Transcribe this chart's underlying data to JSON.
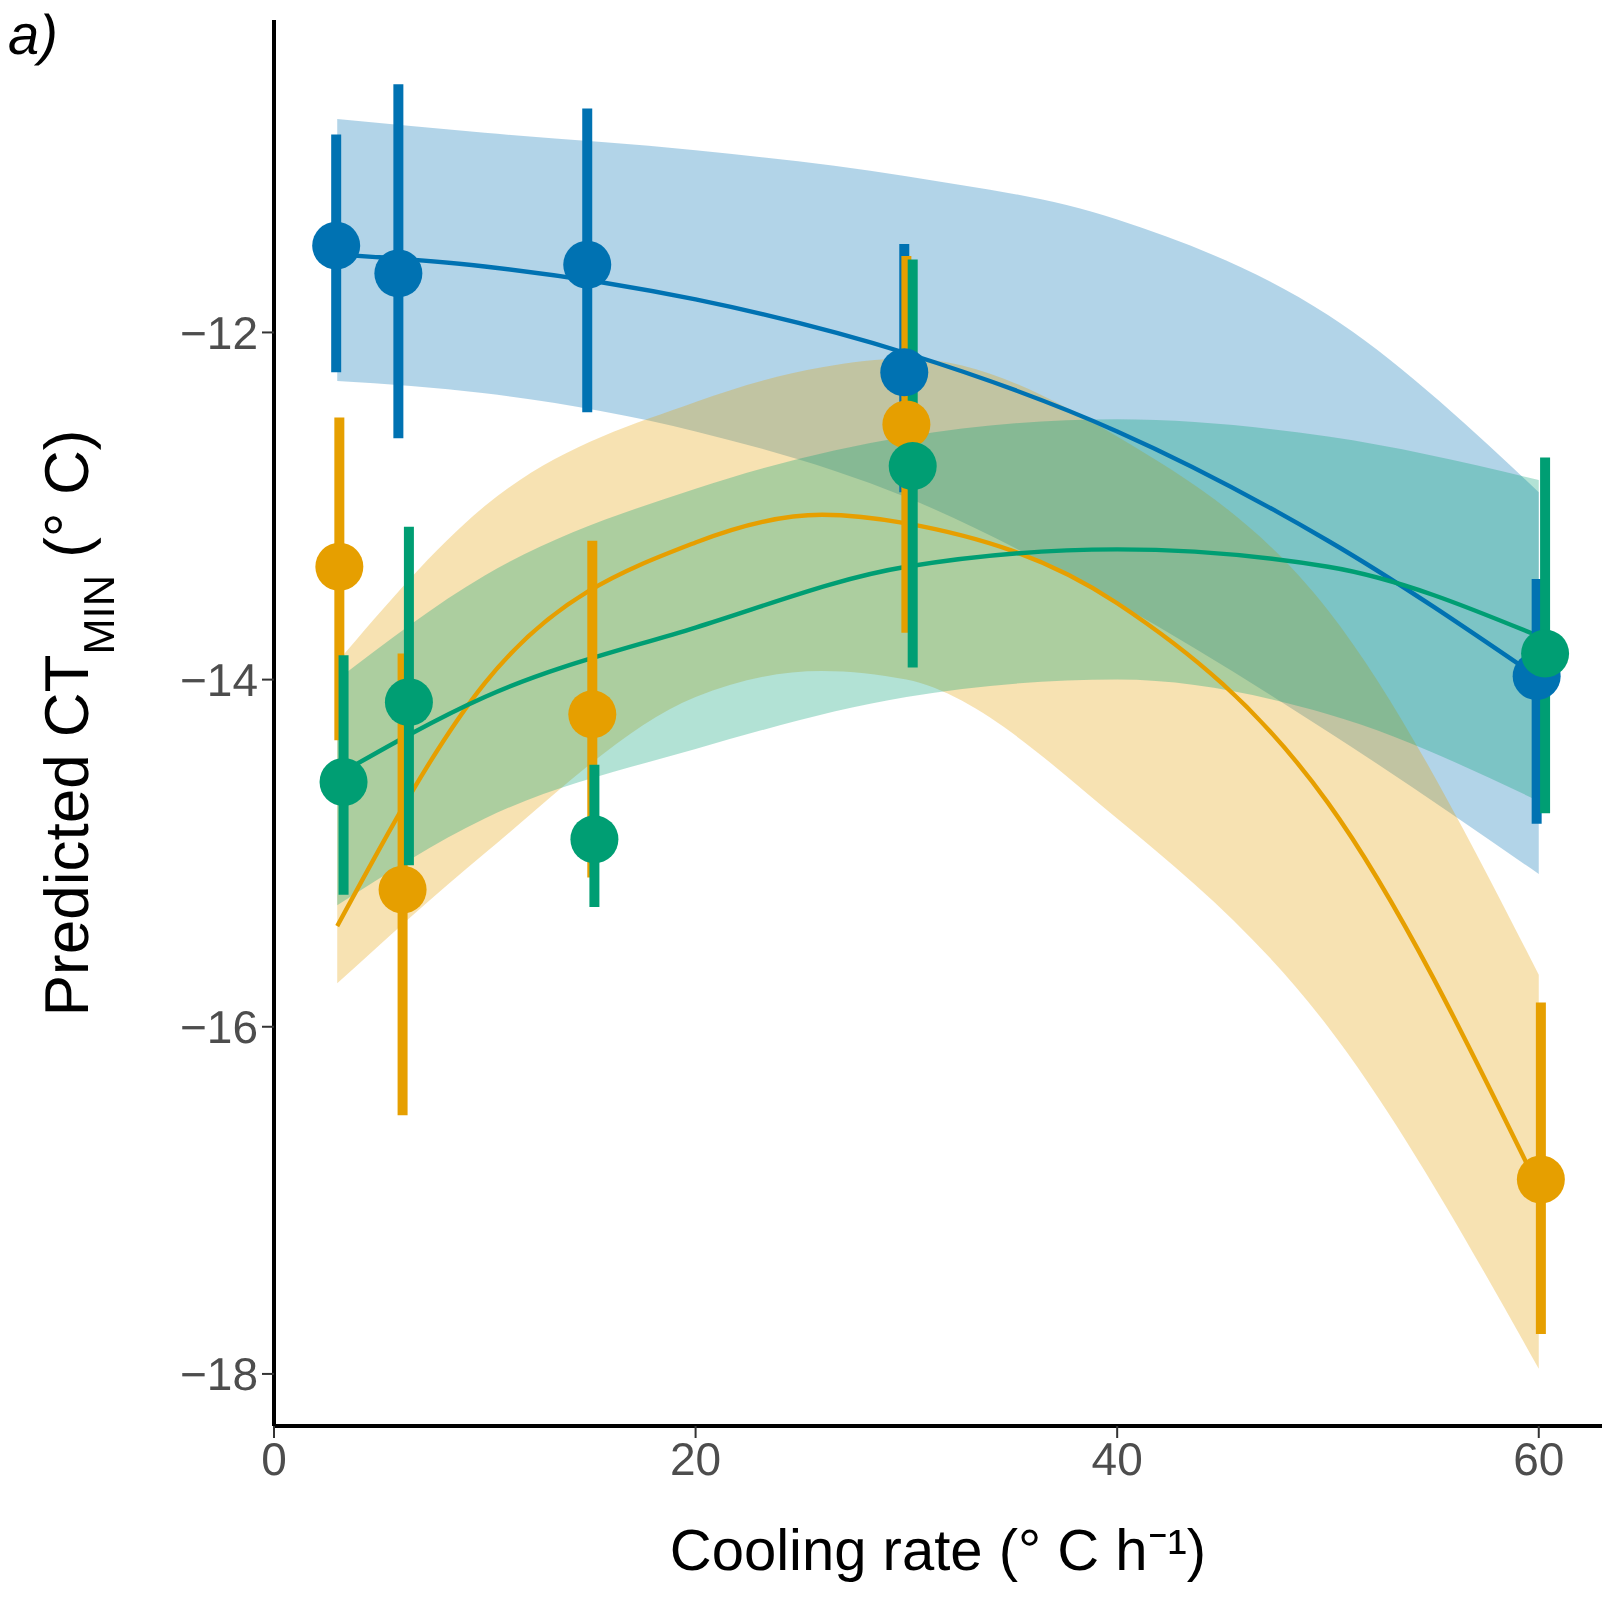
{
  "chart_data": {
    "type": "scatter",
    "xlabel": "Cooling rate (° C h⁻¹)",
    "ylabel": "Predicted CT$_{MIN}$ (° C)",
    "annotations": [
      "a)"
    ],
    "xlim": [
      0,
      63
    ],
    "ylim": [
      -18.3,
      -10.2
    ],
    "xticks": [
      0,
      20,
      40,
      60
    ],
    "yticks": [
      -18,
      -16,
      -14,
      -12
    ],
    "grid": false,
    "legend": false,
    "series": [
      {
        "type": "line",
        "marker": "none",
        "color": "#0072b2",
        "x": [
          3,
          10,
          20,
          30,
          40,
          50,
          60
        ],
        "values": [
          -11.55,
          -11.62,
          -11.81,
          -12.12,
          -12.57,
          -13.2,
          -13.99
        ],
        "lower": [
          -12.28,
          -12.35,
          -12.57,
          -12.95,
          -13.56,
          -14.3,
          -15.12
        ],
        "upper": [
          -10.77,
          -10.85,
          -10.95,
          -11.1,
          -11.35,
          -11.9,
          -12.92
        ]
      },
      {
        "type": "line",
        "marker": "none",
        "color": "#e69f00",
        "x": [
          3,
          10,
          20,
          26,
          30,
          40,
          50,
          60
        ],
        "values": [
          -15.42,
          -14.02,
          -13.21,
          -13.05,
          -13.1,
          -13.56,
          -14.71,
          -16.93
        ],
        "lower": [
          -15.75,
          -15.0,
          -14.1,
          -13.95,
          -14.0,
          -14.8,
          -16.0,
          -17.97
        ],
        "upper": [
          -13.9,
          -13.0,
          -12.4,
          -12.2,
          -12.15,
          -12.6,
          -13.6,
          -15.7
        ]
      },
      {
        "type": "line",
        "marker": "none",
        "color": "#009e73",
        "x": [
          3,
          10,
          20,
          30,
          40,
          50,
          60
        ],
        "values": [
          -14.55,
          -14.1,
          -13.7,
          -13.35,
          -13.25,
          -13.35,
          -13.75
        ],
        "lower": [
          -15.3,
          -14.8,
          -14.4,
          -14.1,
          -14.0,
          -14.2,
          -14.7
        ],
        "upper": [
          -14.0,
          -13.4,
          -12.9,
          -12.6,
          -12.5,
          -12.6,
          -12.85
        ]
      },
      {
        "marker": "circle",
        "color": "#0072b2",
        "x": [
          2.95,
          5.9,
          14.86,
          29.9,
          59.9
        ],
        "values": [
          -11.5,
          -11.66,
          -11.61,
          -12.23,
          -13.98
        ],
        "errors": [
          [
            -12.23,
            -10.86
          ],
          [
            -12.61,
            -10.57
          ],
          [
            -12.46,
            -10.71
          ],
          [
            -12.92,
            -11.49
          ],
          [
            -14.83,
            -13.42
          ]
        ]
      },
      {
        "marker": "circle",
        "color": "#e69f00",
        "x": [
          3.1,
          6.1,
          15.1,
          30,
          60.1
        ],
        "values": [
          -13.35,
          -15.21,
          -14.2,
          -12.53,
          -16.88
        ],
        "errors": [
          [
            -14.35,
            -12.49
          ],
          [
            -16.51,
            -13.85
          ],
          [
            -15.14,
            -13.2
          ],
          [
            -13.73,
            -11.56
          ],
          [
            -17.77,
            -15.86
          ]
        ]
      },
      {
        "marker": "circle",
        "color": "#009e73",
        "x": [
          3.3,
          6.4,
          15.2,
          30.3,
          60.3
        ],
        "values": [
          -14.59,
          -14.13,
          -14.92,
          -12.77,
          -13.85
        ],
        "errors": [
          [
            -15.24,
            -13.86
          ],
          [
            -15.07,
            -13.12
          ],
          [
            -15.31,
            -14.49
          ],
          [
            -13.93,
            -11.58
          ],
          [
            -14.77,
            -12.72
          ]
        ]
      }
    ]
  }
}
